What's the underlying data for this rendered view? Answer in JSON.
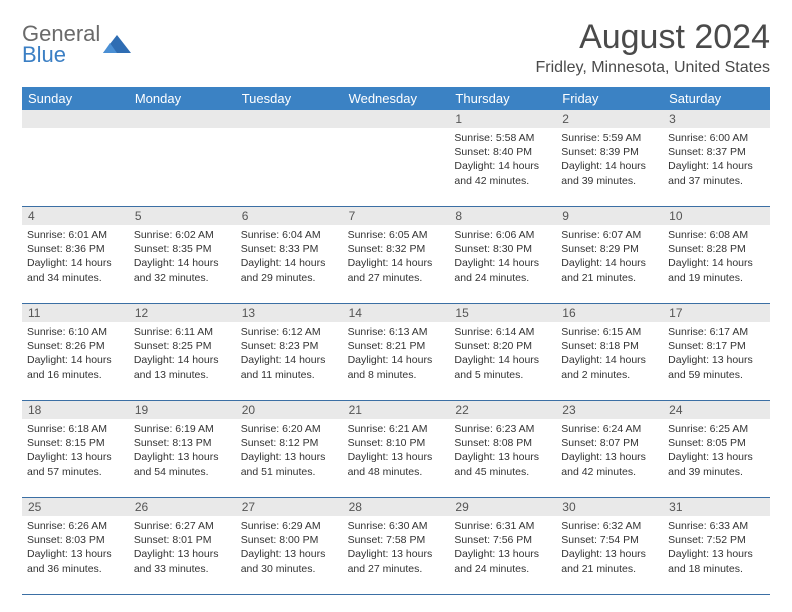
{
  "logo": {
    "line1": "General",
    "line2": "Blue"
  },
  "title": "August 2024",
  "location": "Fridley, Minnesota, United States",
  "colors": {
    "header_bg": "#3b82c4",
    "header_text": "#ffffff",
    "daynum_bg": "#e9e9e9",
    "row_border": "#3b6fa4",
    "body_text": "#333333",
    "title_text": "#4a4a4a",
    "logo_gray": "#6a6a6a",
    "logo_blue": "#3b7fc4"
  },
  "typography": {
    "title_fontsize": 34,
    "location_fontsize": 16,
    "weekday_fontsize": 13,
    "daynum_fontsize": 12,
    "cell_fontsize": 10.5
  },
  "weekdays": [
    "Sunday",
    "Monday",
    "Tuesday",
    "Wednesday",
    "Thursday",
    "Friday",
    "Saturday"
  ],
  "labels": {
    "sunrise": "Sunrise:",
    "sunset": "Sunset:",
    "daylight": "Daylight:"
  },
  "weeks": [
    [
      null,
      null,
      null,
      null,
      {
        "n": "1",
        "sr": "5:58 AM",
        "ss": "8:40 PM",
        "d1": "14 hours",
        "d2": "and 42 minutes."
      },
      {
        "n": "2",
        "sr": "5:59 AM",
        "ss": "8:39 PM",
        "d1": "14 hours",
        "d2": "and 39 minutes."
      },
      {
        "n": "3",
        "sr": "6:00 AM",
        "ss": "8:37 PM",
        "d1": "14 hours",
        "d2": "and 37 minutes."
      }
    ],
    [
      {
        "n": "4",
        "sr": "6:01 AM",
        "ss": "8:36 PM",
        "d1": "14 hours",
        "d2": "and 34 minutes."
      },
      {
        "n": "5",
        "sr": "6:02 AM",
        "ss": "8:35 PM",
        "d1": "14 hours",
        "d2": "and 32 minutes."
      },
      {
        "n": "6",
        "sr": "6:04 AM",
        "ss": "8:33 PM",
        "d1": "14 hours",
        "d2": "and 29 minutes."
      },
      {
        "n": "7",
        "sr": "6:05 AM",
        "ss": "8:32 PM",
        "d1": "14 hours",
        "d2": "and 27 minutes."
      },
      {
        "n": "8",
        "sr": "6:06 AM",
        "ss": "8:30 PM",
        "d1": "14 hours",
        "d2": "and 24 minutes."
      },
      {
        "n": "9",
        "sr": "6:07 AM",
        "ss": "8:29 PM",
        "d1": "14 hours",
        "d2": "and 21 minutes."
      },
      {
        "n": "10",
        "sr": "6:08 AM",
        "ss": "8:28 PM",
        "d1": "14 hours",
        "d2": "and 19 minutes."
      }
    ],
    [
      {
        "n": "11",
        "sr": "6:10 AM",
        "ss": "8:26 PM",
        "d1": "14 hours",
        "d2": "and 16 minutes."
      },
      {
        "n": "12",
        "sr": "6:11 AM",
        "ss": "8:25 PM",
        "d1": "14 hours",
        "d2": "and 13 minutes."
      },
      {
        "n": "13",
        "sr": "6:12 AM",
        "ss": "8:23 PM",
        "d1": "14 hours",
        "d2": "and 11 minutes."
      },
      {
        "n": "14",
        "sr": "6:13 AM",
        "ss": "8:21 PM",
        "d1": "14 hours",
        "d2": "and 8 minutes."
      },
      {
        "n": "15",
        "sr": "6:14 AM",
        "ss": "8:20 PM",
        "d1": "14 hours",
        "d2": "and 5 minutes."
      },
      {
        "n": "16",
        "sr": "6:15 AM",
        "ss": "8:18 PM",
        "d1": "14 hours",
        "d2": "and 2 minutes."
      },
      {
        "n": "17",
        "sr": "6:17 AM",
        "ss": "8:17 PM",
        "d1": "13 hours",
        "d2": "and 59 minutes."
      }
    ],
    [
      {
        "n": "18",
        "sr": "6:18 AM",
        "ss": "8:15 PM",
        "d1": "13 hours",
        "d2": "and 57 minutes."
      },
      {
        "n": "19",
        "sr": "6:19 AM",
        "ss": "8:13 PM",
        "d1": "13 hours",
        "d2": "and 54 minutes."
      },
      {
        "n": "20",
        "sr": "6:20 AM",
        "ss": "8:12 PM",
        "d1": "13 hours",
        "d2": "and 51 minutes."
      },
      {
        "n": "21",
        "sr": "6:21 AM",
        "ss": "8:10 PM",
        "d1": "13 hours",
        "d2": "and 48 minutes."
      },
      {
        "n": "22",
        "sr": "6:23 AM",
        "ss": "8:08 PM",
        "d1": "13 hours",
        "d2": "and 45 minutes."
      },
      {
        "n": "23",
        "sr": "6:24 AM",
        "ss": "8:07 PM",
        "d1": "13 hours",
        "d2": "and 42 minutes."
      },
      {
        "n": "24",
        "sr": "6:25 AM",
        "ss": "8:05 PM",
        "d1": "13 hours",
        "d2": "and 39 minutes."
      }
    ],
    [
      {
        "n": "25",
        "sr": "6:26 AM",
        "ss": "8:03 PM",
        "d1": "13 hours",
        "d2": "and 36 minutes."
      },
      {
        "n": "26",
        "sr": "6:27 AM",
        "ss": "8:01 PM",
        "d1": "13 hours",
        "d2": "and 33 minutes."
      },
      {
        "n": "27",
        "sr": "6:29 AM",
        "ss": "8:00 PM",
        "d1": "13 hours",
        "d2": "and 30 minutes."
      },
      {
        "n": "28",
        "sr": "6:30 AM",
        "ss": "7:58 PM",
        "d1": "13 hours",
        "d2": "and 27 minutes."
      },
      {
        "n": "29",
        "sr": "6:31 AM",
        "ss": "7:56 PM",
        "d1": "13 hours",
        "d2": "and 24 minutes."
      },
      {
        "n": "30",
        "sr": "6:32 AM",
        "ss": "7:54 PM",
        "d1": "13 hours",
        "d2": "and 21 minutes."
      },
      {
        "n": "31",
        "sr": "6:33 AM",
        "ss": "7:52 PM",
        "d1": "13 hours",
        "d2": "and 18 minutes."
      }
    ]
  ]
}
